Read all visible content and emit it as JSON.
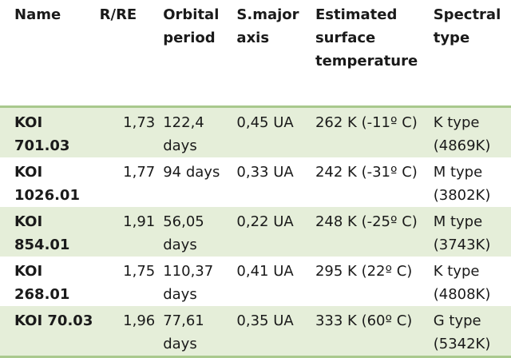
{
  "table": {
    "headers": [
      "Name",
      "R/RE",
      "Orbital period",
      "S.major axis",
      "Estimated surface temperature",
      "Spectral type"
    ],
    "rows": [
      [
        "KOI 701.03",
        "1,73",
        "122,4 days",
        "0,45 UA",
        "262 K (-11º C)",
        "K type (4869K)"
      ],
      [
        "KOI 1026.01",
        "1,77",
        "94 days",
        "0,33 UA",
        "242 K (-31º C)",
        "M type (3802K)"
      ],
      [
        "KOI 854.01",
        "1,91",
        "56,05 days",
        "0,22 UA",
        "248 K (-25º C)",
        "M type (3743K)"
      ],
      [
        "KOI 268.01",
        "1,75",
        "110,37 days",
        "0,41 UA",
        "295 K (22º C)",
        "K type (4808K)"
      ],
      [
        "KOI 70.03",
        "1,96",
        "77,61 days",
        "0,35 UA",
        "333 K (60º C)",
        "G type (5342K)"
      ]
    ]
  },
  "colors": {
    "row_shade": "#e5eed9",
    "rule": "#a9c98d"
  }
}
